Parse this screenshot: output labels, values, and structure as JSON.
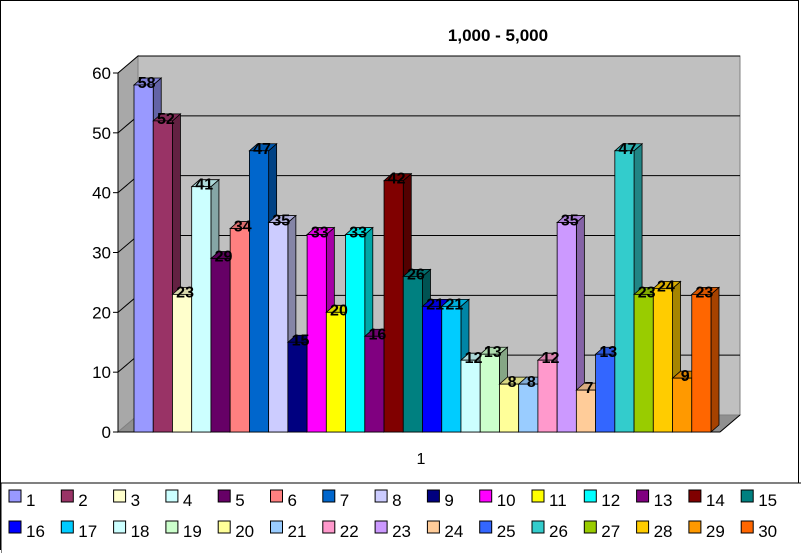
{
  "chart_data": {
    "type": "bar",
    "title": "1,000 - 5,000",
    "categories": [
      "1"
    ],
    "yticks": [
      "0",
      "10",
      "20",
      "30",
      "40",
      "50",
      "60"
    ],
    "ylim": [
      0,
      60
    ],
    "grid": true,
    "legend_position": "bottom",
    "series": [
      {
        "name": "1",
        "values": [
          58
        ],
        "color": "#9999FF"
      },
      {
        "name": "2",
        "values": [
          52
        ],
        "color": "#993366"
      },
      {
        "name": "3",
        "values": [
          23
        ],
        "color": "#FFFFCC"
      },
      {
        "name": "4",
        "values": [
          41
        ],
        "color": "#CCFFFF"
      },
      {
        "name": "5",
        "values": [
          29
        ],
        "color": "#660066"
      },
      {
        "name": "6",
        "values": [
          34
        ],
        "color": "#FF8080"
      },
      {
        "name": "7",
        "values": [
          47
        ],
        "color": "#0066CC"
      },
      {
        "name": "8",
        "values": [
          35
        ],
        "color": "#CCCCFF"
      },
      {
        "name": "9",
        "values": [
          15
        ],
        "color": "#000080"
      },
      {
        "name": "10",
        "values": [
          33
        ],
        "color": "#FF00FF"
      },
      {
        "name": "11",
        "values": [
          20
        ],
        "color": "#FFFF00"
      },
      {
        "name": "12",
        "values": [
          33
        ],
        "color": "#00FFFF"
      },
      {
        "name": "13",
        "values": [
          16
        ],
        "color": "#800080"
      },
      {
        "name": "14",
        "values": [
          42
        ],
        "color": "#800000"
      },
      {
        "name": "15",
        "values": [
          26
        ],
        "color": "#008080"
      },
      {
        "name": "16",
        "values": [
          21
        ],
        "color": "#0000FF"
      },
      {
        "name": "17",
        "values": [
          21
        ],
        "color": "#00CCFF"
      },
      {
        "name": "18",
        "values": [
          12
        ],
        "color": "#CCFFFF"
      },
      {
        "name": "19",
        "values": [
          13
        ],
        "color": "#CCFFCC"
      },
      {
        "name": "20",
        "values": [
          8
        ],
        "color": "#FFFF99"
      },
      {
        "name": "21",
        "values": [
          8
        ],
        "color": "#99CCFF"
      },
      {
        "name": "22",
        "values": [
          12
        ],
        "color": "#FF99CC"
      },
      {
        "name": "23",
        "values": [
          35
        ],
        "color": "#CC99FF"
      },
      {
        "name": "24",
        "values": [
          7
        ],
        "color": "#FFCC99"
      },
      {
        "name": "25",
        "values": [
          13
        ],
        "color": "#3366FF"
      },
      {
        "name": "26",
        "values": [
          47
        ],
        "color": "#33CCCC"
      },
      {
        "name": "27",
        "values": [
          23
        ],
        "color": "#99CC00"
      },
      {
        "name": "28",
        "values": [
          24
        ],
        "color": "#FFCC00"
      },
      {
        "name": "29",
        "values": [
          9
        ],
        "color": "#FF9900"
      },
      {
        "name": "30",
        "values": [
          23
        ],
        "color": "#FF6600"
      }
    ]
  }
}
